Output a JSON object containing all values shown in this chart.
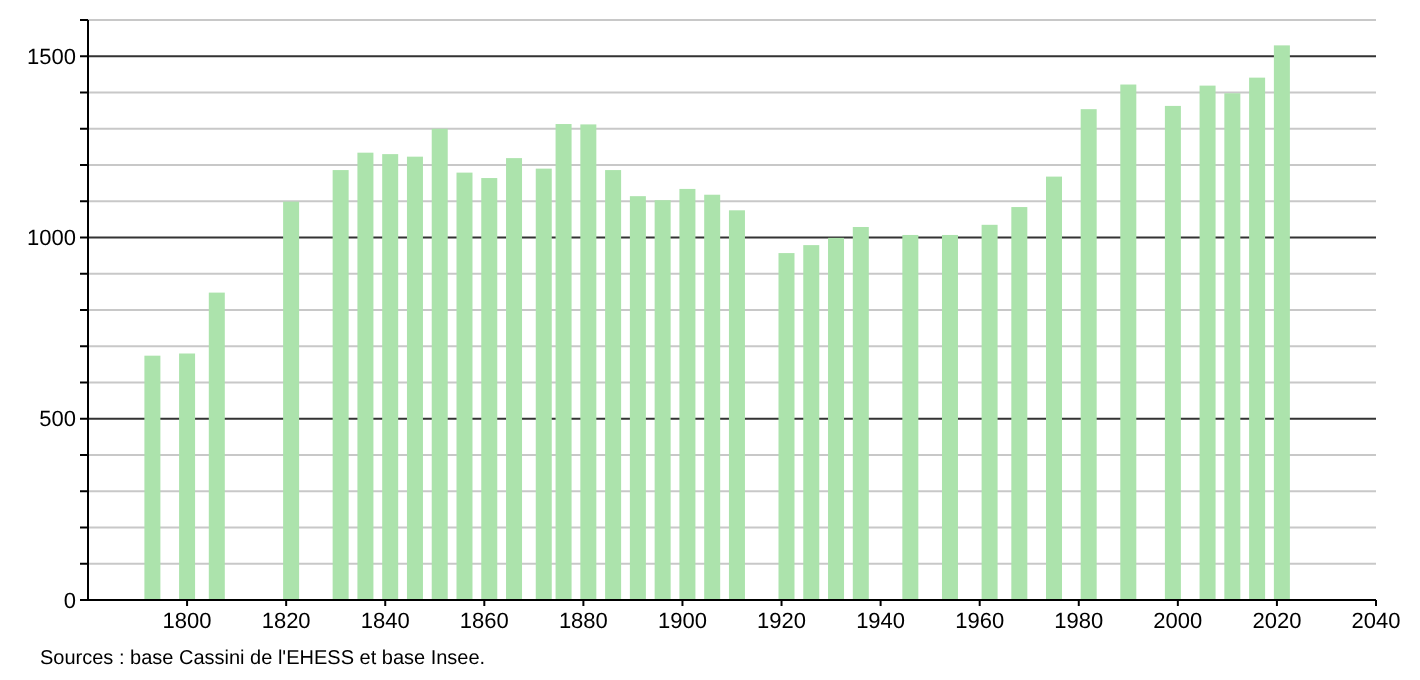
{
  "chart_data": {
    "type": "bar",
    "color": "#ace3ac",
    "x": [
      1793,
      1800,
      1806,
      1821,
      1831,
      1836,
      1841,
      1846,
      1851,
      1856,
      1861,
      1866,
      1872,
      1876,
      1881,
      1886,
      1891,
      1896,
      1901,
      1906,
      1911,
      1921,
      1926,
      1931,
      1936,
      1946,
      1954,
      1962,
      1968,
      1975,
      1982,
      1990,
      1999,
      2006,
      2011,
      2016,
      2021
    ],
    "values": [
      674,
      680,
      848,
      1099,
      1186,
      1234,
      1230,
      1223,
      1300,
      1179,
      1164,
      1219,
      1190,
      1313,
      1312,
      1186,
      1114,
      1103,
      1134,
      1118,
      1075,
      957,
      979,
      999,
      1029,
      1007,
      1007,
      1035,
      1084,
      1168,
      1354,
      1422,
      1363,
      1419,
      1398,
      1441,
      1530
    ],
    "xlim": [
      1780,
      2040
    ],
    "xticks": [
      1800,
      1820,
      1840,
      1860,
      1880,
      1900,
      1920,
      1940,
      1960,
      1980,
      2000,
      2020,
      2040
    ],
    "ylim": [
      0,
      1600
    ],
    "yticks": [
      0,
      {
        "value": 100,
        "label": null
      },
      {
        "value": 200,
        "label": null
      },
      {
        "value": 300,
        "label": null
      },
      {
        "value": 400,
        "label": null
      },
      500,
      {
        "value": 600,
        "label": null
      },
      {
        "value": 700,
        "label": null
      },
      {
        "value": 800,
        "label": null
      },
      {
        "value": 900,
        "label": null
      },
      1000,
      {
        "value": 1100,
        "label": null
      },
      {
        "value": 1200,
        "label": null
      },
      {
        "value": 1300,
        "label": null
      },
      {
        "value": 1400,
        "label": null
      },
      1500,
      {
        "value": 1600,
        "label": null
      }
    ],
    "grid": true,
    "annotations": [
      "Sources : base Cassini de l'EHESS et base Insee."
    ]
  }
}
